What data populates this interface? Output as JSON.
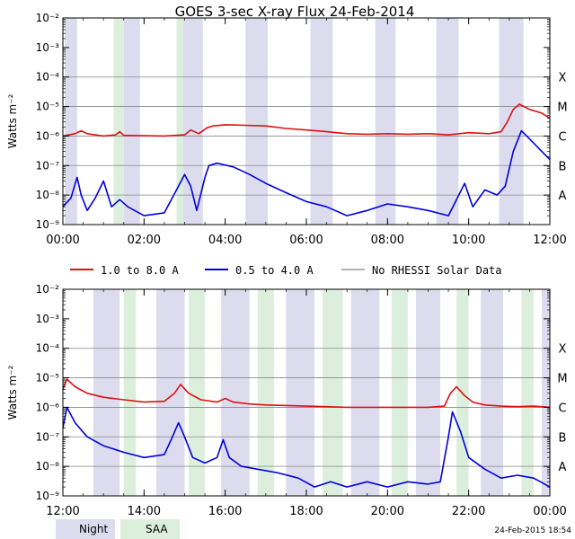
{
  "title": "GOES 3-sec X-ray Flux   24-Feb-2014",
  "footer_timestamp": "24-Feb-2015 18:54",
  "colors": {
    "long_channel": "#dd1111",
    "short_channel": "#0000dd",
    "no_rhessi": "#999999",
    "night": "#dcdcee",
    "saa": "#dcefdc",
    "grid": "#888888"
  },
  "legend": {
    "long": "1.0 to 8.0 A",
    "short": "0.5 to 4.0 A",
    "no_rhessi": "No RHESSI Solar Data"
  },
  "bottom_legend": {
    "night": "Night",
    "saa": "SAA"
  },
  "chart_data": [
    {
      "type": "line",
      "title": "GOES 3-sec X-ray Flux   24-Feb-2014",
      "xlabel": "",
      "ylabel": "Watts m⁻²",
      "scale": "log",
      "ylim": [
        1e-09,
        0.01
      ],
      "xlim_hours": [
        0,
        12
      ],
      "x_ticks": [
        {
          "h": 0,
          "label": "00:00"
        },
        {
          "h": 2,
          "label": "02:00"
        },
        {
          "h": 4,
          "label": "04:00"
        },
        {
          "h": 6,
          "label": "06:00"
        },
        {
          "h": 8,
          "label": "08:00"
        },
        {
          "h": 10,
          "label": "10:00"
        },
        {
          "h": 12,
          "label": "12:00"
        }
      ],
      "y_ticks": [
        {
          "exp": -9,
          "label": "10⁻⁹"
        },
        {
          "exp": -8,
          "label": "10⁻⁸"
        },
        {
          "exp": -7,
          "label": "10⁻⁷"
        },
        {
          "exp": -6,
          "label": "10⁻⁶"
        },
        {
          "exp": -5,
          "label": "10⁻⁵"
        },
        {
          "exp": -4,
          "label": "10⁻⁴"
        },
        {
          "exp": -3,
          "label": "10⁻³"
        },
        {
          "exp": -2,
          "label": "10⁻²"
        }
      ],
      "flare_classes": [
        {
          "exp": -8,
          "label": "A"
        },
        {
          "exp": -7,
          "label": "B"
        },
        {
          "exp": -6,
          "label": "C"
        },
        {
          "exp": -5,
          "label": "M"
        },
        {
          "exp": -4,
          "label": "X"
        }
      ],
      "night_bands_hours": [
        [
          0.05,
          0.35
        ],
        [
          1.5,
          1.9
        ],
        [
          2.95,
          3.45
        ],
        [
          4.5,
          5.05
        ],
        [
          6.1,
          6.65
        ],
        [
          7.7,
          8.2
        ],
        [
          9.2,
          9.75
        ],
        [
          10.75,
          11.35
        ]
      ],
      "saa_bands_hours": [
        [
          1.25,
          1.5
        ],
        [
          2.8,
          2.95
        ]
      ],
      "series": [
        {
          "name": "1.0 to 8.0 A",
          "points": [
            [
              0.0,
              1e-06
            ],
            [
              0.3,
              1.2e-06
            ],
            [
              0.45,
              1.5e-06
            ],
            [
              0.6,
              1.2e-06
            ],
            [
              1.0,
              1e-06
            ],
            [
              1.3,
              1.1e-06
            ],
            [
              1.4,
              1.4e-06
            ],
            [
              1.5,
              1.05e-06
            ],
            [
              2.5,
              1e-06
            ],
            [
              3.0,
              1.1e-06
            ],
            [
              3.15,
              1.6e-06
            ],
            [
              3.35,
              1.2e-06
            ],
            [
              3.55,
              1.9e-06
            ],
            [
              3.7,
              2.2e-06
            ],
            [
              4.0,
              2.4e-06
            ],
            [
              4.5,
              2.3e-06
            ],
            [
              5.0,
              2.2e-06
            ],
            [
              5.5,
              1.8e-06
            ],
            [
              6.0,
              1.6e-06
            ],
            [
              6.5,
              1.4e-06
            ],
            [
              7.0,
              1.2e-06
            ],
            [
              7.5,
              1.15e-06
            ],
            [
              8.0,
              1.2e-06
            ],
            [
              8.5,
              1.15e-06
            ],
            [
              9.0,
              1.2e-06
            ],
            [
              9.5,
              1.1e-06
            ],
            [
              10.0,
              1.3e-06
            ],
            [
              10.5,
              1.2e-06
            ],
            [
              10.8,
              1.4e-06
            ],
            [
              10.95,
              3e-06
            ],
            [
              11.1,
              8e-06
            ],
            [
              11.25,
              1.2e-05
            ],
            [
              11.5,
              8e-06
            ],
            [
              11.8,
              6e-06
            ],
            [
              12.0,
              4e-06
            ]
          ]
        },
        {
          "name": "0.5 to 4.0 A",
          "points": [
            [
              0.0,
              4e-09
            ],
            [
              0.2,
              8e-09
            ],
            [
              0.35,
              4e-08
            ],
            [
              0.45,
              1e-08
            ],
            [
              0.6,
              3e-09
            ],
            [
              0.8,
              8e-09
            ],
            [
              1.0,
              3e-08
            ],
            [
              1.2,
              4e-09
            ],
            [
              1.4,
              7e-09
            ],
            [
              1.6,
              4e-09
            ],
            [
              2.0,
              2e-09
            ],
            [
              2.5,
              2.5e-09
            ],
            [
              2.8,
              1.5e-08
            ],
            [
              3.0,
              5e-08
            ],
            [
              3.15,
              2e-08
            ],
            [
              3.3,
              3e-09
            ],
            [
              3.5,
              4e-08
            ],
            [
              3.6,
              1e-07
            ],
            [
              3.8,
              1.2e-07
            ],
            [
              4.2,
              9e-08
            ],
            [
              4.6,
              5e-08
            ],
            [
              5.0,
              2.5e-08
            ],
            [
              5.5,
              1.2e-08
            ],
            [
              6.0,
              6e-09
            ],
            [
              6.5,
              4e-09
            ],
            [
              7.0,
              2e-09
            ],
            [
              7.5,
              3e-09
            ],
            [
              8.0,
              5e-09
            ],
            [
              8.5,
              4e-09
            ],
            [
              9.0,
              3e-09
            ],
            [
              9.5,
              2e-09
            ],
            [
              9.9,
              2.5e-08
            ],
            [
              10.1,
              4e-09
            ],
            [
              10.4,
              1.5e-08
            ],
            [
              10.7,
              1e-08
            ],
            [
              10.9,
              2e-08
            ],
            [
              11.1,
              3e-07
            ],
            [
              11.3,
              1.5e-06
            ],
            [
              11.5,
              8e-07
            ],
            [
              11.8,
              3e-07
            ],
            [
              12.0,
              1.6e-07
            ]
          ]
        }
      ]
    },
    {
      "type": "line",
      "title": "",
      "xlabel": "",
      "ylabel": "Watts m⁻²",
      "scale": "log",
      "ylim": [
        1e-09,
        0.01
      ],
      "xlim_hours": [
        12,
        24
      ],
      "x_ticks": [
        {
          "h": 12,
          "label": "12:00"
        },
        {
          "h": 14,
          "label": "14:00"
        },
        {
          "h": 16,
          "label": "16:00"
        },
        {
          "h": 18,
          "label": "18:00"
        },
        {
          "h": 20,
          "label": "20:00"
        },
        {
          "h": 22,
          "label": "22:00"
        },
        {
          "h": 24,
          "label": "00:00"
        }
      ],
      "y_ticks": [
        {
          "exp": -9,
          "label": "10⁻⁹"
        },
        {
          "exp": -8,
          "label": "10⁻⁸"
        },
        {
          "exp": -7,
          "label": "10⁻⁷"
        },
        {
          "exp": -6,
          "label": "10⁻⁶"
        },
        {
          "exp": -5,
          "label": "10⁻⁵"
        },
        {
          "exp": -4,
          "label": "10⁻⁴"
        },
        {
          "exp": -3,
          "label": "10⁻³"
        },
        {
          "exp": -2,
          "label": "10⁻²"
        }
      ],
      "flare_classes": [
        {
          "exp": -8,
          "label": "A"
        },
        {
          "exp": -7,
          "label": "B"
        },
        {
          "exp": -6,
          "label": "C"
        },
        {
          "exp": -5,
          "label": "M"
        },
        {
          "exp": -4,
          "label": "X"
        }
      ],
      "night_bands_hours": [
        [
          12.75,
          13.4
        ],
        [
          14.3,
          15.0
        ],
        [
          15.9,
          16.6
        ],
        [
          17.5,
          18.2
        ],
        [
          19.1,
          19.8
        ],
        [
          20.7,
          21.3
        ],
        [
          22.3,
          22.85
        ],
        [
          23.8,
          24.0
        ]
      ],
      "saa_bands_hours": [
        [
          13.5,
          13.8
        ],
        [
          15.1,
          15.5
        ],
        [
          16.8,
          17.2
        ],
        [
          18.4,
          18.9
        ],
        [
          20.1,
          20.5
        ],
        [
          21.7,
          22.0
        ],
        [
          23.3,
          23.6
        ]
      ],
      "series": [
        {
          "name": "1.0 to 8.0 A",
          "points": [
            [
              12.0,
              4e-06
            ],
            [
              12.1,
              9e-06
            ],
            [
              12.3,
              5e-06
            ],
            [
              12.6,
              3e-06
            ],
            [
              13.0,
              2.2e-06
            ],
            [
              13.5,
              1.8e-06
            ],
            [
              14.0,
              1.5e-06
            ],
            [
              14.5,
              1.6e-06
            ],
            [
              14.75,
              3e-06
            ],
            [
              14.9,
              6e-06
            ],
            [
              15.1,
              3e-06
            ],
            [
              15.4,
              1.8e-06
            ],
            [
              15.8,
              1.5e-06
            ],
            [
              16.0,
              2e-06
            ],
            [
              16.2,
              1.5e-06
            ],
            [
              16.6,
              1.3e-06
            ],
            [
              17.0,
              1.2e-06
            ],
            [
              17.5,
              1.15e-06
            ],
            [
              18.0,
              1.1e-06
            ],
            [
              18.5,
              1.05e-06
            ],
            [
              19.0,
              1e-06
            ],
            [
              19.5,
              1e-06
            ],
            [
              20.0,
              1e-06
            ],
            [
              20.5,
              1e-06
            ],
            [
              21.0,
              1e-06
            ],
            [
              21.4,
              1.1e-06
            ],
            [
              21.55,
              3e-06
            ],
            [
              21.7,
              5e-06
            ],
            [
              21.9,
              2.5e-06
            ],
            [
              22.1,
              1.5e-06
            ],
            [
              22.4,
              1.2e-06
            ],
            [
              22.8,
              1.1e-06
            ],
            [
              23.2,
              1.05e-06
            ],
            [
              23.6,
              1.1e-06
            ],
            [
              24.0,
              1e-06
            ]
          ]
        },
        {
          "name": "0.5 to 4.0 A",
          "points": [
            [
              12.0,
              2e-07
            ],
            [
              12.1,
              1e-06
            ],
            [
              12.3,
              3e-07
            ],
            [
              12.6,
              1e-07
            ],
            [
              13.0,
              5e-08
            ],
            [
              13.5,
              3e-08
            ],
            [
              14.0,
              2e-08
            ],
            [
              14.5,
              2.5e-08
            ],
            [
              14.7,
              1e-07
            ],
            [
              14.85,
              3e-07
            ],
            [
              15.0,
              1e-07
            ],
            [
              15.2,
              2e-08
            ],
            [
              15.5,
              1.3e-08
            ],
            [
              15.8,
              2e-08
            ],
            [
              15.95,
              8e-08
            ],
            [
              16.1,
              2e-08
            ],
            [
              16.4,
              1e-08
            ],
            [
              16.8,
              8e-09
            ],
            [
              17.3,
              6e-09
            ],
            [
              17.8,
              4e-09
            ],
            [
              18.2,
              2e-09
            ],
            [
              18.6,
              3e-09
            ],
            [
              19.0,
              2e-09
            ],
            [
              19.5,
              3e-09
            ],
            [
              20.0,
              2e-09
            ],
            [
              20.5,
              3e-09
            ],
            [
              21.0,
              2.5e-09
            ],
            [
              21.3,
              3e-09
            ],
            [
              21.5,
              1e-07
            ],
            [
              21.6,
              7e-07
            ],
            [
              21.8,
              1.5e-07
            ],
            [
              22.0,
              2e-08
            ],
            [
              22.4,
              8e-09
            ],
            [
              22.8,
              4e-09
            ],
            [
              23.2,
              5e-09
            ],
            [
              23.6,
              4e-09
            ],
            [
              24.0,
              2e-09
            ]
          ]
        }
      ]
    }
  ]
}
